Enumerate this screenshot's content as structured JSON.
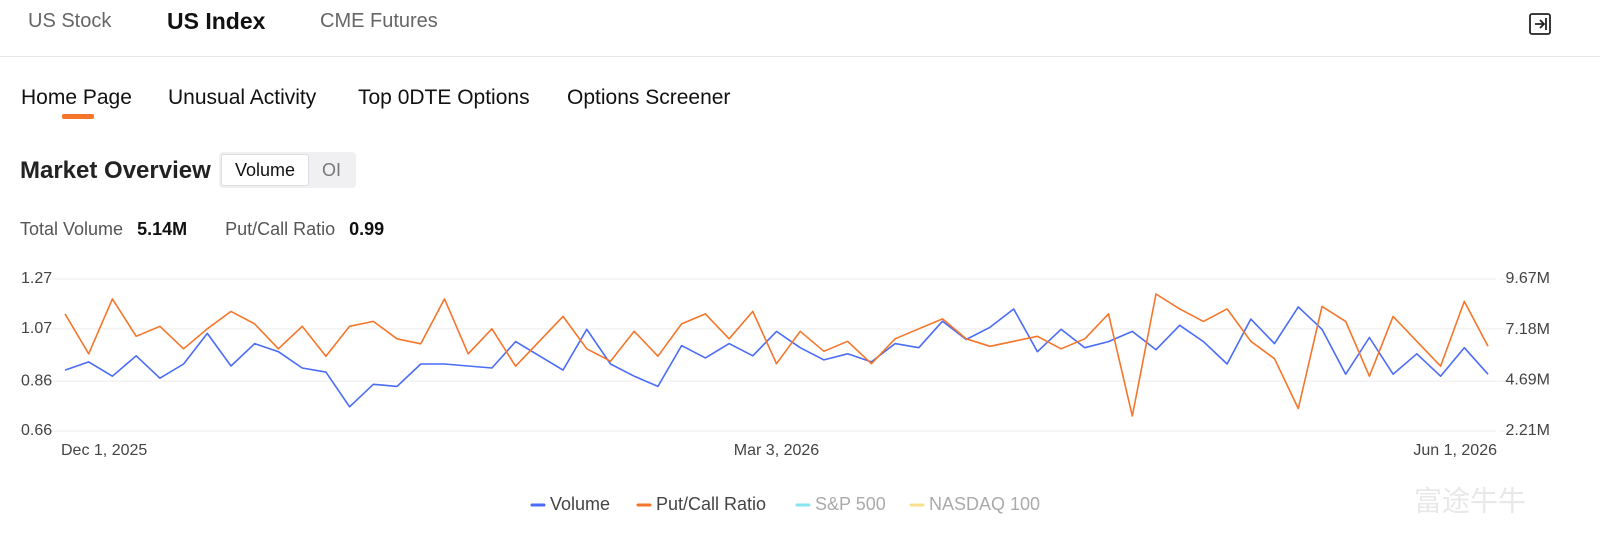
{
  "nav": {
    "tabs": [
      "US Stock",
      "US Index",
      "CME Futures"
    ],
    "active": 1
  },
  "subnav": {
    "tabs": [
      "Home Page",
      "Unusual Activity",
      "Top 0DTE Options",
      "Options Screener"
    ],
    "active": 0
  },
  "section": {
    "title": "Market Overview",
    "toggle": [
      "Volume",
      "OI"
    ],
    "active": 0
  },
  "stats": [
    {
      "label": "Total Volume",
      "value": "5.14M"
    },
    {
      "label": "Put/Call Ratio",
      "value": "0.99"
    }
  ],
  "watermark": "富途牛牛",
  "chart_data": {
    "type": "line",
    "categories": [
      "Dec 1, 2025",
      null,
      null,
      null,
      null,
      null,
      null,
      null,
      null,
      null,
      null,
      null,
      null,
      null,
      null,
      null,
      null,
      null,
      null,
      null,
      null,
      null,
      null,
      null,
      null,
      null,
      null,
      null,
      null,
      null,
      "Mar 3, 2026",
      null,
      null,
      null,
      null,
      null,
      null,
      null,
      null,
      null,
      null,
      null,
      null,
      null,
      null,
      null,
      null,
      null,
      null,
      null,
      null,
      null,
      null,
      null,
      null,
      null,
      null,
      null,
      null,
      null,
      "Jun 1, 2026"
    ],
    "series": [
      {
        "name": "Volume",
        "color": "#4a6cf7",
        "axis": "y2",
        "values": [
          5.2,
          5.6,
          4.9,
          5.9,
          4.8,
          5.5,
          7.0,
          5.4,
          6.5,
          6.1,
          5.3,
          5.1,
          3.4,
          4.5,
          4.4,
          5.5,
          5.5,
          5.4,
          5.3,
          6.6,
          5.9,
          5.2,
          7.2,
          5.5,
          4.9,
          4.4,
          6.4,
          5.8,
          6.5,
          5.9,
          7.1,
          6.3,
          5.7,
          6.0,
          5.6,
          6.5,
          6.3,
          7.6,
          6.7,
          7.3,
          8.2,
          6.1,
          7.2,
          6.3,
          6.6,
          7.1,
          6.2,
          7.4,
          6.6,
          5.5,
          7.7,
          6.5,
          8.3,
          7.2,
          5.0,
          6.8,
          5.0,
          6.0,
          4.9,
          6.3,
          5.0
        ]
      },
      {
        "name": "Put/Call Ratio",
        "color": "#f5762a",
        "values": [
          1.13,
          0.97,
          1.19,
          1.04,
          1.08,
          0.99,
          1.07,
          1.14,
          1.09,
          0.99,
          1.08,
          0.96,
          1.08,
          1.1,
          1.03,
          1.01,
          1.19,
          0.97,
          1.07,
          0.92,
          1.02,
          1.12,
          0.99,
          0.94,
          1.06,
          0.96,
          1.09,
          1.13,
          1.03,
          1.14,
          0.93,
          1.06,
          0.98,
          1.02,
          0.93,
          1.03,
          1.07,
          1.11,
          1.03,
          1.0,
          1.02,
          1.04,
          0.99,
          1.03,
          1.13,
          0.72,
          1.21,
          1.15,
          1.1,
          1.15,
          1.02,
          0.95,
          0.75,
          1.16,
          1.1,
          0.88,
          1.12,
          1.02,
          0.92,
          1.18,
          1.0
        ]
      }
    ],
    "legend_disabled": [
      {
        "name": "S&P 500",
        "color": "#86e3ef"
      },
      {
        "name": "NASDAQ 100",
        "color": "#f8e08e"
      }
    ],
    "ylim": [
      0.66,
      1.27
    ],
    "yticks": [
      0.66,
      0.86,
      1.07,
      1.27
    ],
    "y2lim": [
      2.21,
      9.67
    ],
    "y2ticks": [
      {
        "value": 2.21,
        "label": "2.21M"
      },
      {
        "value": 4.69,
        "label": "4.69M"
      },
      {
        "value": 7.18,
        "label": "7.18M"
      },
      {
        "value": 9.67,
        "label": "9.67M"
      }
    ],
    "grid": true,
    "legend": "bottom"
  }
}
